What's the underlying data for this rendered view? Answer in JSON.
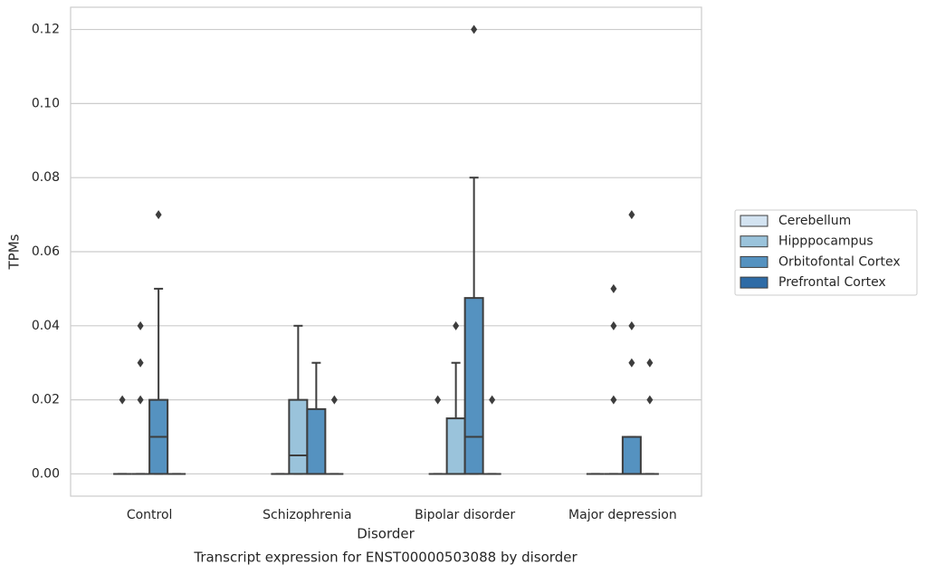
{
  "chart_data": {
    "type": "box",
    "title": "Transcript expression for ENST00000503088 by disorder",
    "xlabel": "Disorder",
    "ylabel": "TPMs",
    "categories": [
      "Control",
      "Schizophrenia",
      "Bipolar disorder",
      "Major depression"
    ],
    "ylim": [
      -0.006,
      0.126
    ],
    "yticks": [
      {
        "value": 0,
        "label": "0.00"
      },
      {
        "value": 0.02,
        "label": "0.02"
      },
      {
        "value": 0.04,
        "label": "0.04"
      },
      {
        "value": 0.06,
        "label": "0.06"
      },
      {
        "value": 0.08,
        "label": "0.08"
      },
      {
        "value": 0.1,
        "label": "0.10"
      },
      {
        "value": 0.12,
        "label": "0.12"
      }
    ],
    "grid": true,
    "legend": "right",
    "series": [
      {
        "name": "Cerebellum",
        "color": "#d3e3f1",
        "values": [
          {
            "min": 0,
            "q1": 0,
            "median": 0,
            "q3": 0,
            "max": 0,
            "outliers": [
              0.02
            ]
          },
          {
            "min": 0,
            "q1": 0,
            "median": 0,
            "q3": 0,
            "max": 0,
            "outliers": []
          },
          {
            "min": 0,
            "q1": 0,
            "median": 0,
            "q3": 0,
            "max": 0,
            "outliers": [
              0.02
            ]
          },
          {
            "min": 0,
            "q1": 0,
            "median": 0,
            "q3": 0,
            "max": 0,
            "outliers": []
          }
        ]
      },
      {
        "name": "Hipppocampus",
        "color": "#9ac3db",
        "values": [
          {
            "min": 0,
            "q1": 0,
            "median": 0,
            "q3": 0,
            "max": 0,
            "outliers": [
              0.02,
              0.03,
              0.04
            ]
          },
          {
            "min": 0,
            "q1": 0,
            "median": 0.005,
            "q3": 0.02,
            "max": 0.04,
            "outliers": []
          },
          {
            "min": 0,
            "q1": 0,
            "median": 0,
            "q3": 0.015,
            "max": 0.03,
            "outliers": [
              0.04
            ]
          },
          {
            "min": 0,
            "q1": 0,
            "median": 0,
            "q3": 0,
            "max": 0,
            "outliers": [
              0.02,
              0.04,
              0.05
            ]
          }
        ]
      },
      {
        "name": "Orbitofontal Cortex",
        "color": "#5592c0",
        "values": [
          {
            "min": 0,
            "q1": 0,
            "median": 0.01,
            "q3": 0.02,
            "max": 0.05,
            "outliers": [
              0.07
            ]
          },
          {
            "min": 0,
            "q1": 0,
            "median": 0,
            "q3": 0.0175,
            "max": 0.03,
            "outliers": []
          },
          {
            "min": 0,
            "q1": 0,
            "median": 0.01,
            "q3": 0.0475,
            "max": 0.08,
            "outliers": [
              0.12
            ]
          },
          {
            "min": 0,
            "q1": 0,
            "median": 0,
            "q3": 0.01,
            "max": 0.01,
            "outliers": [
              0.03,
              0.04,
              0.07
            ]
          }
        ]
      },
      {
        "name": "Prefrontal Cortex",
        "color": "#2e6ba6",
        "values": [
          {
            "min": 0,
            "q1": 0,
            "median": 0,
            "q3": 0,
            "max": 0,
            "outliers": []
          },
          {
            "min": 0,
            "q1": 0,
            "median": 0,
            "q3": 0,
            "max": 0,
            "outliers": [
              0.02
            ]
          },
          {
            "min": 0,
            "q1": 0,
            "median": 0,
            "q3": 0,
            "max": 0,
            "outliers": [
              0.02
            ]
          },
          {
            "min": 0,
            "q1": 0,
            "median": 0,
            "q3": 0,
            "max": 0,
            "outliers": [
              0.02,
              0.03
            ]
          }
        ]
      }
    ]
  }
}
